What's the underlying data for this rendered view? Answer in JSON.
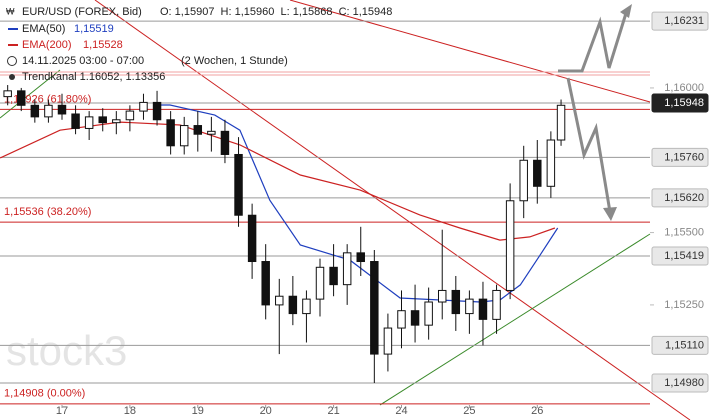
{
  "chart_data": {
    "type": "candlestick",
    "title": "EUR/USD (FOREX, Bid)",
    "ohlc_header": "O: 1,15907  H: 1,15960  L: 1,15868  C: 1,15948",
    "period": "14.11.2025 03:00 - 07:00",
    "interval": "(2 Wochen, 1 Stunde)",
    "trend_channel": "Trendkanal 1.16052, 1.13356",
    "watermark": "stock3",
    "up_color": "#ffffff",
    "down_color": "#111111",
    "x": [
      -0.8,
      -0.6,
      -0.4,
      -0.2,
      0.0,
      0.2,
      0.4,
      0.6,
      0.8,
      1.0,
      1.2,
      1.4,
      1.6,
      1.8,
      2.0,
      2.2,
      2.4,
      2.6,
      2.8,
      3.0,
      3.2,
      3.4,
      3.6,
      3.8,
      4.0,
      4.2,
      4.4,
      4.6,
      4.8,
      5.0,
      5.2,
      5.4,
      5.6,
      5.8,
      6.0,
      6.2,
      6.4,
      6.6,
      6.8,
      7.0,
      7.2,
      7.35
    ],
    "open": [
      1.1597,
      1.1599,
      1.1594,
      1.159,
      1.1594,
      1.1591,
      1.1586,
      1.159,
      1.1588,
      1.1589,
      1.1592,
      1.1595,
      1.1589,
      1.158,
      1.1587,
      1.1584,
      1.1585,
      1.1577,
      1.1556,
      1.154,
      1.1525,
      1.1528,
      1.1522,
      1.1527,
      1.1538,
      1.1532,
      1.1543,
      1.154,
      1.1508,
      1.1517,
      1.1523,
      1.1518,
      1.1526,
      1.153,
      1.1522,
      1.1527,
      1.152,
      1.153,
      1.1561,
      1.1575,
      1.1566,
      1.1582
    ],
    "high": [
      1.1601,
      1.16,
      1.1596,
      1.1596,
      1.1598,
      1.1594,
      1.1592,
      1.1593,
      1.1592,
      1.1594,
      1.1598,
      1.1599,
      1.1592,
      1.159,
      1.1592,
      1.159,
      1.1589,
      1.1583,
      1.156,
      1.1546,
      1.1534,
      1.1535,
      1.153,
      1.1541,
      1.1546,
      1.1546,
      1.1552,
      1.1544,
      1.1522,
      1.153,
      1.1532,
      1.1531,
      1.1551,
      1.1535,
      1.153,
      1.1533,
      1.1532,
      1.1567,
      1.158,
      1.1582,
      1.1585,
      1.1596
    ],
    "low": [
      1.1594,
      1.1592,
      1.1588,
      1.1588,
      1.1589,
      1.1584,
      1.1582,
      1.1585,
      1.1584,
      1.1585,
      1.1589,
      1.1587,
      1.1577,
      1.1577,
      1.1578,
      1.1578,
      1.1574,
      1.1552,
      1.1534,
      1.152,
      1.1508,
      1.1518,
      1.1512,
      1.1521,
      1.1528,
      1.1525,
      1.1535,
      1.1498,
      1.1502,
      1.151,
      1.1512,
      1.1513,
      1.152,
      1.1516,
      1.1515,
      1.1511,
      1.1515,
      1.1527,
      1.1555,
      1.156,
      1.1562,
      1.158
    ],
    "close": [
      1.1599,
      1.1594,
      1.159,
      1.1594,
      1.1591,
      1.1586,
      1.159,
      1.1588,
      1.1589,
      1.1592,
      1.1595,
      1.1589,
      1.158,
      1.1587,
      1.1584,
      1.1585,
      1.1577,
      1.1556,
      1.154,
      1.1525,
      1.1528,
      1.1522,
      1.1527,
      1.1538,
      1.1532,
      1.1543,
      1.154,
      1.1508,
      1.1517,
      1.1523,
      1.1518,
      1.1526,
      1.153,
      1.1522,
      1.1527,
      1.152,
      1.153,
      1.1561,
      1.1575,
      1.1566,
      1.1582,
      1.1594
    ],
    "indicators": [
      {
        "name": "EMA(50)",
        "value_label": "1,15519",
        "color": "#1f3fbf",
        "x": [
          1.37,
          1.59,
          2.25,
          2.62,
          3.06,
          3.51,
          4.24,
          4.98,
          5.57,
          6.16,
          6.45,
          6.75,
          7.04,
          7.3
        ],
        "values": [
          1.15941,
          1.15941,
          1.15906,
          1.15854,
          1.15612,
          1.15457,
          1.15405,
          1.15274,
          1.15267,
          1.1526,
          1.15267,
          1.15319,
          1.15422,
          1.15516
        ]
      },
      {
        "name": "EMA(200)",
        "value_label": "1,15528",
        "color": "#cc2222",
        "x": [
          -0.91,
          -0.03,
          0.85,
          1.74,
          2.62,
          3.51,
          4.39,
          5.27,
          5.86,
          6.45,
          6.89,
          7.26
        ],
        "values": [
          1.15758,
          1.15854,
          1.15882,
          1.15872,
          1.15803,
          1.15699,
          1.15647,
          1.15561,
          1.15516,
          1.15474,
          1.15485,
          1.15516
        ]
      }
    ],
    "levels": [
      {
        "value": 1.15926,
        "label": "1,15926 (61.80%)",
        "color": "#cc2222"
      },
      {
        "value": 1.15536,
        "label": "1,15536 (38.20%)",
        "color": "#cc2222"
      },
      {
        "value": 1.14908,
        "label": "1,14908 (0.00%)",
        "color": "#cc2222"
      }
    ],
    "price_boxes": [
      {
        "value": 1.16231,
        "label": "1,16231"
      },
      {
        "value": 1.15948,
        "label": "1,15948"
      },
      {
        "value": 1.1576,
        "label": "1,15760"
      },
      {
        "value": 1.1562,
        "label": "1,15620"
      },
      {
        "value": 1.15419,
        "label": "1,15419"
      },
      {
        "value": 1.1511,
        "label": "1,15110"
      },
      {
        "value": 1.1498,
        "label": "1,14980"
      }
    ],
    "current_price_index": 1,
    "xlim": [
      -0.913,
      8.66
    ],
    "ylim": [
      1.14904,
      1.16304
    ],
    "yticks": [
      {
        "value": 1.16,
        "label": "1,16000"
      },
      {
        "value": 1.155,
        "label": "1,15500"
      },
      {
        "value": 1.1525,
        "label": "1,15250"
      }
    ],
    "xticks": [
      {
        "value": 0,
        "label": "17"
      },
      {
        "value": 1,
        "label": "18"
      },
      {
        "value": 2,
        "label": "19"
      },
      {
        "value": 3,
        "label": "20"
      },
      {
        "value": 4,
        "label": "21"
      },
      {
        "value": 5,
        "label": "24"
      },
      {
        "value": 6,
        "label": "25"
      },
      {
        "value": 7,
        "label": "26"
      }
    ]
  }
}
